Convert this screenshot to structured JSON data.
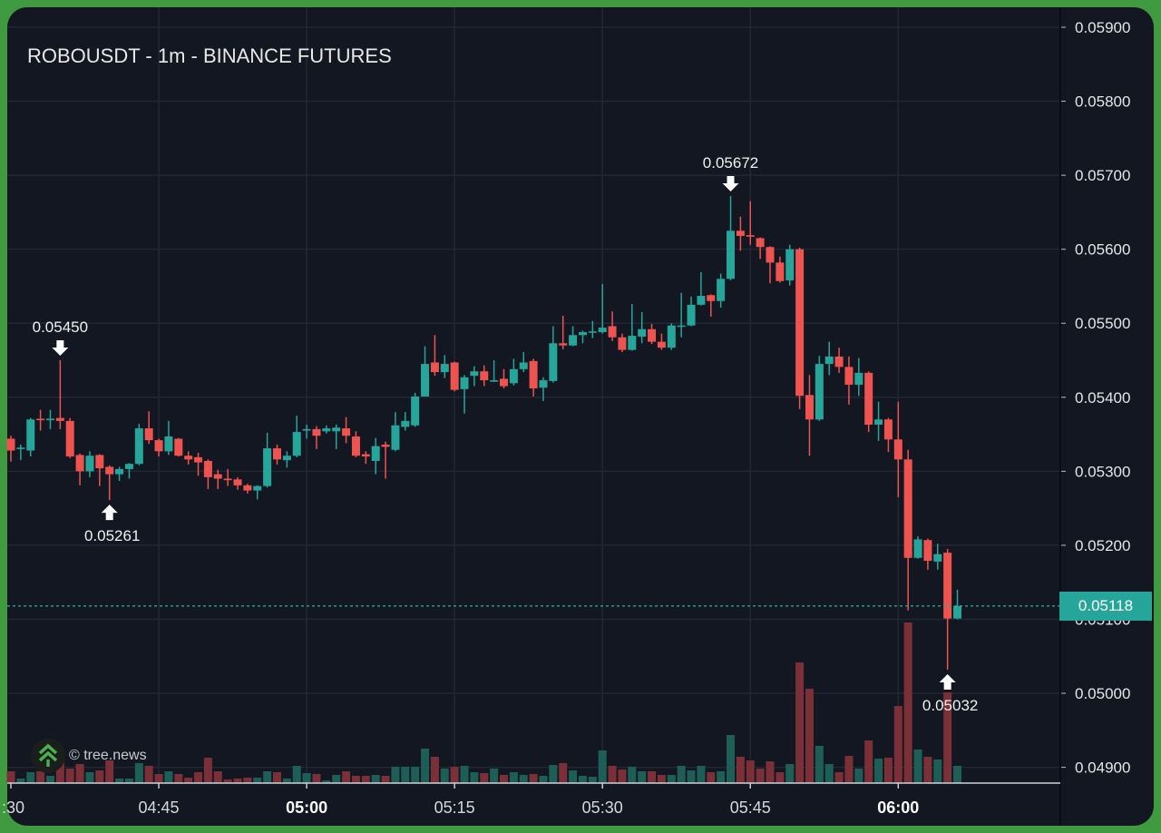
{
  "header": {
    "title": "ROBOUSDT - 1m - BINANCE FUTURES"
  },
  "watermark": {
    "text": "© tree.news",
    "icon": "tree-chevrons-icon"
  },
  "colors": {
    "up": "#26a69a",
    "down": "#ef5350",
    "volume_up": "#1d5e57",
    "volume_down": "#7b2f36",
    "background": "#131722",
    "frame": "#3f9a40"
  },
  "last_price": {
    "label": "0.05118",
    "value": 0.05118
  },
  "chart_data": {
    "type": "candlestick",
    "title": "ROBOUSDT - 1m - BINANCE FUTURES",
    "ylim": [
      0.0489,
      0.0591
    ],
    "y_ticks": [
      "0.05900",
      "0.05800",
      "0.05700",
      "0.05600",
      "0.05500",
      "0.05400",
      "0.05300",
      "0.05200",
      "0.05100",
      "0.05000",
      "0.04900"
    ],
    "y_tick_values": [
      0.059,
      0.058,
      0.057,
      0.056,
      0.055,
      0.054,
      0.053,
      0.052,
      0.051,
      0.05,
      0.049
    ],
    "x_ticks": [
      {
        "label": ":30",
        "time": "04:30",
        "bold": false
      },
      {
        "label": "04:45",
        "time": "04:45",
        "bold": false
      },
      {
        "label": "05:00",
        "time": "05:00",
        "bold": true
      },
      {
        "label": "05:15",
        "time": "05:15",
        "bold": false
      },
      {
        "label": "05:30",
        "time": "05:30",
        "bold": false
      },
      {
        "label": "05:45",
        "time": "05:45",
        "bold": false
      },
      {
        "label": "06:00",
        "time": "06:00",
        "bold": true
      }
    ],
    "grid": true,
    "annotations": [
      {
        "label": "0.05450",
        "index": 5,
        "kind": "high"
      },
      {
        "label": "0.05261",
        "index": 10,
        "kind": "low"
      },
      {
        "label": "0.05672",
        "index": 73,
        "kind": "high"
      },
      {
        "label": "0.05032",
        "index": 95,
        "kind": "low"
      }
    ],
    "times": [
      "04:30",
      "04:31",
      "04:32",
      "04:33",
      "04:34",
      "04:35",
      "04:36",
      "04:37",
      "04:38",
      "04:39",
      "04:40",
      "04:41",
      "04:42",
      "04:43",
      "04:44",
      "04:45",
      "04:46",
      "04:47",
      "04:48",
      "04:49",
      "04:50",
      "04:51",
      "04:52",
      "04:53",
      "04:54",
      "04:55",
      "04:56",
      "04:57",
      "04:58",
      "04:59",
      "05:00",
      "05:01",
      "05:02",
      "05:03",
      "05:04",
      "05:05",
      "05:06",
      "05:07",
      "05:08",
      "05:09",
      "05:10",
      "05:11",
      "05:12",
      "05:13",
      "05:14",
      "05:15",
      "05:16",
      "05:17",
      "05:18",
      "05:19",
      "05:20",
      "05:21",
      "05:22",
      "05:23",
      "05:24",
      "05:25",
      "05:26",
      "05:27",
      "05:28",
      "05:29",
      "05:30",
      "05:31",
      "05:32",
      "05:33",
      "05:34",
      "05:35",
      "05:36",
      "05:37",
      "05:38",
      "05:39",
      "05:40",
      "05:41",
      "05:42",
      "05:43",
      "05:44",
      "05:45",
      "05:46",
      "05:47",
      "05:48",
      "05:49",
      "05:50",
      "05:51",
      "05:52",
      "05:53",
      "05:54",
      "05:55",
      "05:56",
      "05:57",
      "05:58",
      "05:59",
      "06:00",
      "06:01",
      "06:02",
      "06:03",
      "06:04",
      "06:05",
      "06:06"
    ],
    "ohlc": [
      [
        0.05344,
        0.05348,
        0.05313,
        0.05328
      ],
      [
        0.0533,
        0.05336,
        0.05315,
        0.05332
      ],
      [
        0.05328,
        0.05372,
        0.0532,
        0.0537
      ],
      [
        0.05371,
        0.05383,
        0.05355,
        0.05369
      ],
      [
        0.05369,
        0.05383,
        0.05357,
        0.05371
      ],
      [
        0.05372,
        0.0545,
        0.05357,
        0.05368
      ],
      [
        0.05368,
        0.05372,
        0.05318,
        0.0532
      ],
      [
        0.05322,
        0.05324,
        0.05281,
        0.053
      ],
      [
        0.053,
        0.05327,
        0.05292,
        0.05321
      ],
      [
        0.05322,
        0.05323,
        0.0528,
        0.05304
      ],
      [
        0.05306,
        0.05308,
        0.05261,
        0.05296
      ],
      [
        0.05296,
        0.05306,
        0.05287,
        0.05303
      ],
      [
        0.05303,
        0.05311,
        0.0529,
        0.0531
      ],
      [
        0.0531,
        0.05364,
        0.05308,
        0.05358
      ],
      [
        0.05358,
        0.05381,
        0.05337,
        0.05342
      ],
      [
        0.05342,
        0.05344,
        0.0532,
        0.05327
      ],
      [
        0.05327,
        0.05368,
        0.05322,
        0.05347
      ],
      [
        0.05344,
        0.05345,
        0.0532,
        0.05321
      ],
      [
        0.05321,
        0.05327,
        0.05309,
        0.05316
      ],
      [
        0.05319,
        0.05325,
        0.05294,
        0.05312
      ],
      [
        0.05314,
        0.05316,
        0.05276,
        0.05292
      ],
      [
        0.05296,
        0.05302,
        0.05276,
        0.0529
      ],
      [
        0.0529,
        0.05303,
        0.0528,
        0.05288
      ],
      [
        0.05289,
        0.05292,
        0.05275,
        0.05281
      ],
      [
        0.05281,
        0.05283,
        0.0527,
        0.05274
      ],
      [
        0.05274,
        0.05281,
        0.05262,
        0.0528
      ],
      [
        0.0528,
        0.05352,
        0.05278,
        0.05331
      ],
      [
        0.05331,
        0.05336,
        0.05309,
        0.05316
      ],
      [
        0.05315,
        0.05327,
        0.05305,
        0.05321
      ],
      [
        0.05321,
        0.05375,
        0.05319,
        0.05353
      ],
      [
        0.05355,
        0.05363,
        0.05344,
        0.05357
      ],
      [
        0.05357,
        0.05361,
        0.0533,
        0.05348
      ],
      [
        0.05354,
        0.05362,
        0.05351,
        0.05358
      ],
      [
        0.05354,
        0.05363,
        0.0533,
        0.05359
      ],
      [
        0.05358,
        0.05373,
        0.05338,
        0.05348
      ],
      [
        0.05347,
        0.05354,
        0.05319,
        0.05321
      ],
      [
        0.05323,
        0.05327,
        0.0531,
        0.0532
      ],
      [
        0.05314,
        0.05345,
        0.05296,
        0.05334
      ],
      [
        0.05336,
        0.0534,
        0.0529,
        0.05333
      ],
      [
        0.05329,
        0.0538,
        0.05327,
        0.05362
      ],
      [
        0.0536,
        0.0538,
        0.05355,
        0.05368
      ],
      [
        0.05362,
        0.05406,
        0.0536,
        0.05401
      ],
      [
        0.05401,
        0.05469,
        0.05401,
        0.05445
      ],
      [
        0.05447,
        0.05484,
        0.05429,
        0.05434
      ],
      [
        0.05434,
        0.05457,
        0.05426,
        0.05445
      ],
      [
        0.05447,
        0.05448,
        0.05408,
        0.0541
      ],
      [
        0.05411,
        0.0543,
        0.05378,
        0.05427
      ],
      [
        0.05429,
        0.05442,
        0.05415,
        0.05435
      ],
      [
        0.05435,
        0.05443,
        0.05415,
        0.05423
      ],
      [
        0.05421,
        0.0545,
        0.05421,
        0.05423
      ],
      [
        0.05425,
        0.05438,
        0.05412,
        0.05415
      ],
      [
        0.05419,
        0.05452,
        0.05416,
        0.05438
      ],
      [
        0.05438,
        0.05461,
        0.05434,
        0.05447
      ],
      [
        0.05449,
        0.05452,
        0.05401,
        0.05412
      ],
      [
        0.05413,
        0.05427,
        0.05395,
        0.05423
      ],
      [
        0.05422,
        0.05496,
        0.0542,
        0.05473
      ],
      [
        0.05473,
        0.0551,
        0.05465,
        0.0547
      ],
      [
        0.0547,
        0.05496,
        0.05469,
        0.05484
      ],
      [
        0.05484,
        0.0549,
        0.05473,
        0.05488
      ],
      [
        0.05488,
        0.05503,
        0.0548,
        0.05489
      ],
      [
        0.05488,
        0.05553,
        0.05486,
        0.05494
      ],
      [
        0.05496,
        0.05516,
        0.05476,
        0.05481
      ],
      [
        0.05481,
        0.05486,
        0.05461,
        0.05464
      ],
      [
        0.05464,
        0.05526,
        0.05463,
        0.05483
      ],
      [
        0.05482,
        0.05515,
        0.05473,
        0.05492
      ],
      [
        0.05492,
        0.05499,
        0.05472,
        0.05475
      ],
      [
        0.05475,
        0.05486,
        0.05464,
        0.05467
      ],
      [
        0.05467,
        0.055,
        0.05464,
        0.05497
      ],
      [
        0.05496,
        0.05541,
        0.05481,
        0.05497
      ],
      [
        0.05497,
        0.05536,
        0.05496,
        0.05525
      ],
      [
        0.05525,
        0.05569,
        0.05524,
        0.05537
      ],
      [
        0.05538,
        0.05539,
        0.05509,
        0.0553
      ],
      [
        0.0553,
        0.05567,
        0.05521,
        0.0556
      ],
      [
        0.0556,
        0.05672,
        0.05558,
        0.05625
      ],
      [
        0.05625,
        0.05644,
        0.05598,
        0.05618
      ],
      [
        0.05619,
        0.05665,
        0.05606,
        0.05617
      ],
      [
        0.05615,
        0.05616,
        0.05587,
        0.05603
      ],
      [
        0.05603,
        0.05604,
        0.05554,
        0.05582
      ],
      [
        0.05582,
        0.0559,
        0.05555,
        0.05557
      ],
      [
        0.05558,
        0.05606,
        0.05551,
        0.056
      ],
      [
        0.056,
        0.05602,
        0.05384,
        0.05402
      ],
      [
        0.05403,
        0.0543,
        0.05321,
        0.0537
      ],
      [
        0.0537,
        0.05456,
        0.05368,
        0.05445
      ],
      [
        0.05445,
        0.05475,
        0.0543,
        0.05455
      ],
      [
        0.05455,
        0.05467,
        0.05433,
        0.05441
      ],
      [
        0.05441,
        0.05455,
        0.0539,
        0.05417
      ],
      [
        0.05417,
        0.05453,
        0.05402,
        0.05433
      ],
      [
        0.05433,
        0.05435,
        0.05353,
        0.05363
      ],
      [
        0.05363,
        0.05394,
        0.05341,
        0.0537
      ],
      [
        0.0537,
        0.05372,
        0.05326,
        0.05343
      ],
      [
        0.05343,
        0.05394,
        0.05265,
        0.05316
      ],
      [
        0.05316,
        0.05329,
        0.05112,
        0.05183
      ],
      [
        0.05183,
        0.05212,
        0.05182,
        0.05208
      ],
      [
        0.05207,
        0.05209,
        0.05167,
        0.05179
      ],
      [
        0.05178,
        0.05202,
        0.05167,
        0.05188
      ],
      [
        0.0519,
        0.05195,
        0.05032,
        0.05101
      ],
      [
        0.05101,
        0.0514,
        0.051,
        0.05118
      ]
    ],
    "volume_relative": [
      13,
      5,
      12,
      13,
      8,
      33,
      16,
      21,
      12,
      14,
      25,
      5,
      5,
      22,
      19,
      10,
      13,
      10,
      6,
      12,
      28,
      13,
      4,
      5,
      6,
      6,
      13,
      12,
      5,
      19,
      11,
      10,
      3,
      9,
      13,
      8,
      8,
      9,
      8,
      18,
      18,
      18,
      38,
      29,
      16,
      18,
      19,
      12,
      11,
      16,
      9,
      12,
      9,
      10,
      8,
      20,
      22,
      14,
      8,
      7,
      36,
      19,
      15,
      18,
      13,
      13,
      9,
      9,
      19,
      14,
      19,
      12,
      13,
      53,
      29,
      25,
      16,
      24,
      12,
      21,
      133,
      104,
      41,
      21,
      12,
      30,
      16,
      47,
      27,
      28,
      85,
      177,
      37,
      29,
      26,
      100,
      19
    ]
  }
}
